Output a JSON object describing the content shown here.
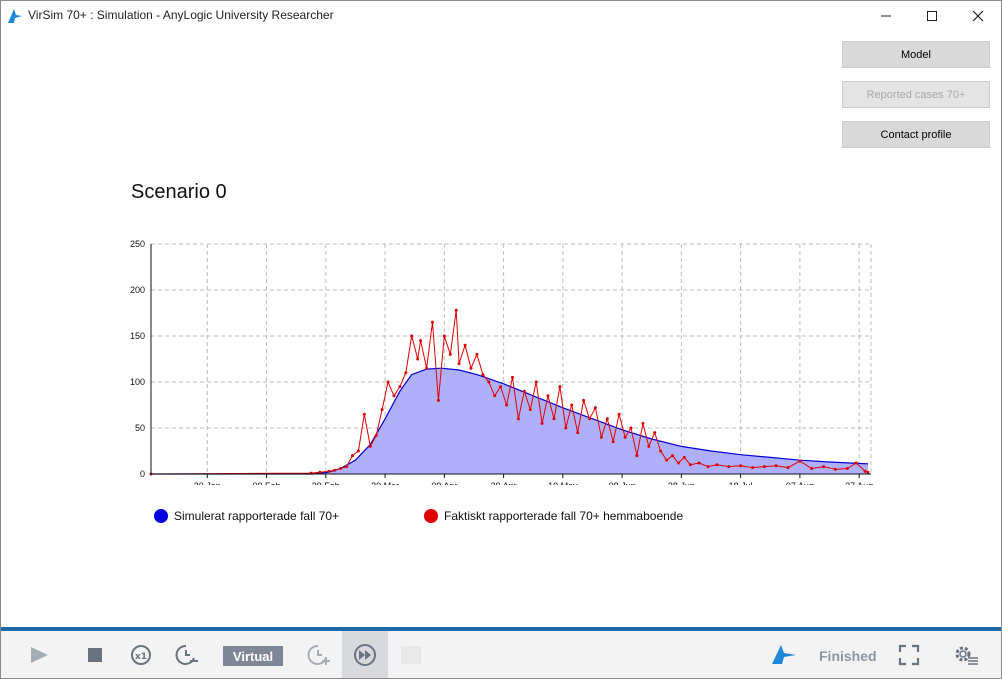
{
  "window": {
    "title": "VirSim 70+ : Simulation - AnyLogic University Researcher"
  },
  "side_buttons": {
    "model": "Model",
    "reported": "Reported cases 70+",
    "contact": "Contact profile"
  },
  "chart_data": {
    "type": "area",
    "title": "Scenario 0",
    "ylim": [
      0,
      250
    ],
    "yticks": [
      "0",
      "50",
      "100",
      "150",
      "200",
      "250"
    ],
    "xticks": [
      "20 Jan",
      "09 Feb",
      "29 Feb",
      "20 Mar",
      "09 Apr",
      "29 Apr",
      "19 May",
      "08 Jun",
      "28 Jun",
      "18 Jul",
      "07 Aug",
      "27 Aug"
    ],
    "x_start": "2020-01-01",
    "x_end": "2020-08-31",
    "grid": true,
    "legend_position": "bottom",
    "series": [
      {
        "name": "Simulerat rapporterade fall 70+",
        "type": "area",
        "color": "#0000e0",
        "fill": "#b0b0fa",
        "x": [
          "2020-01-01",
          "2020-02-25",
          "2020-03-01",
          "2020-03-05",
          "2020-03-10",
          "2020-03-15",
          "2020-03-20",
          "2020-03-25",
          "2020-03-29",
          "2020-04-03",
          "2020-04-08",
          "2020-04-14",
          "2020-04-20",
          "2020-04-29",
          "2020-05-09",
          "2020-05-19",
          "2020-05-29",
          "2020-06-08",
          "2020-06-18",
          "2020-06-28",
          "2020-07-08",
          "2020-07-18",
          "2020-07-28",
          "2020-08-07",
          "2020-08-17",
          "2020-08-30"
        ],
        "values": [
          0,
          0,
          2,
          6,
          15,
          32,
          60,
          90,
          108,
          114,
          115,
          113,
          108,
          98,
          85,
          72,
          60,
          48,
          38,
          30,
          25,
          21,
          18,
          15,
          13,
          11
        ]
      },
      {
        "name": "Faktiskt rapporterade fall 70+ hemmaboende",
        "type": "line",
        "color": "#e00000",
        "x": [
          "2020-01-01",
          "2020-02-24",
          "2020-02-27",
          "2020-03-01",
          "2020-03-03",
          "2020-03-05",
          "2020-03-07",
          "2020-03-09",
          "2020-03-11",
          "2020-03-13",
          "2020-03-15",
          "2020-03-17",
          "2020-03-19",
          "2020-03-21",
          "2020-03-23",
          "2020-03-25",
          "2020-03-27",
          "2020-03-29",
          "2020-03-31",
          "2020-04-01",
          "2020-04-03",
          "2020-04-05",
          "2020-04-07",
          "2020-04-09",
          "2020-04-11",
          "2020-04-13",
          "2020-04-14",
          "2020-04-16",
          "2020-04-18",
          "2020-04-20",
          "2020-04-22",
          "2020-04-24",
          "2020-04-26",
          "2020-04-28",
          "2020-04-30",
          "2020-05-02",
          "2020-05-04",
          "2020-05-06",
          "2020-05-08",
          "2020-05-10",
          "2020-05-12",
          "2020-05-14",
          "2020-05-16",
          "2020-05-18",
          "2020-05-20",
          "2020-05-22",
          "2020-05-24",
          "2020-05-26",
          "2020-05-28",
          "2020-05-30",
          "2020-06-01",
          "2020-06-03",
          "2020-06-05",
          "2020-06-07",
          "2020-06-09",
          "2020-06-11",
          "2020-06-13",
          "2020-06-15",
          "2020-06-17",
          "2020-06-19",
          "2020-06-21",
          "2020-06-23",
          "2020-06-25",
          "2020-06-27",
          "2020-06-29",
          "2020-07-01",
          "2020-07-04",
          "2020-07-07",
          "2020-07-10",
          "2020-07-14",
          "2020-07-18",
          "2020-07-22",
          "2020-07-26",
          "2020-07-30",
          "2020-08-03",
          "2020-08-07",
          "2020-08-11",
          "2020-08-15",
          "2020-08-19",
          "2020-08-23",
          "2020-08-26",
          "2020-08-29",
          "2020-08-30"
        ],
        "values": [
          0,
          1,
          2,
          3,
          4,
          6,
          8,
          20,
          25,
          65,
          30,
          42,
          70,
          100,
          85,
          95,
          110,
          150,
          125,
          145,
          115,
          165,
          80,
          150,
          130,
          178,
          120,
          140,
          115,
          130,
          108,
          100,
          85,
          95,
          75,
          105,
          60,
          90,
          70,
          100,
          55,
          85,
          60,
          95,
          50,
          75,
          45,
          80,
          60,
          72,
          40,
          60,
          35,
          65,
          40,
          50,
          20,
          55,
          30,
          45,
          25,
          15,
          20,
          12,
          18,
          10,
          12,
          8,
          10,
          8,
          9,
          7,
          8,
          9,
          7,
          14,
          6,
          8,
          5,
          6,
          12,
          3,
          2
        ]
      }
    ]
  },
  "legend": {
    "sim_label": "Simulerat rapporterade fall 70+",
    "sim_color": "#0000e0",
    "act_label": "Faktiskt rapporterade fall 70+ hemmaboende",
    "act_color": "#e00000"
  },
  "toolbar": {
    "mode_label": "Virtual",
    "status_label": "Finished"
  },
  "colors": {
    "accent": "#1e6aa8",
    "mode_bg": "#7f8796",
    "status": "#8d96a4"
  }
}
